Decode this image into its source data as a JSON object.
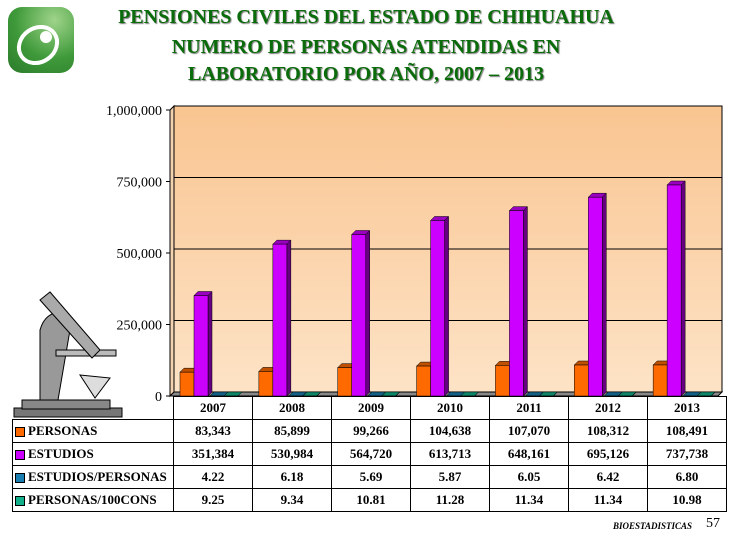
{
  "title": {
    "line1": "PENSIONES  CIVILES  DEL  ESTADO  DE  CHIHUAHUA",
    "line2": "NUMERO DE PERSONAS ATENDIDAS EN",
    "line3": "LABORATORIO POR AÑO,  2007  –  2013"
  },
  "footer": {
    "label": "BIOESTADISTICAS",
    "page": "57"
  },
  "chart_data": {
    "type": "bar",
    "categories": [
      "2007",
      "2008",
      "2009",
      "2010",
      "2011",
      "2012",
      "2013"
    ],
    "ylim": [
      0,
      1000000
    ],
    "yticks": [
      "0",
      "250,000",
      "500,000",
      "750,000",
      "1,000,000"
    ],
    "ytick_values": [
      0,
      250000,
      500000,
      750000,
      1000000
    ],
    "series": [
      {
        "name": "PERSONAS",
        "color": "#ff6a00",
        "values": [
          83343,
          85899,
          99266,
          104638,
          107070,
          108312,
          108491
        ],
        "labels": [
          "83,343",
          "85,899",
          "99,266",
          "104,638",
          "107,070",
          "108,312",
          "108,491"
        ]
      },
      {
        "name": "ESTUDIOS",
        "color": "#cc00ff",
        "values": [
          351384,
          530984,
          564720,
          613713,
          648161,
          695126,
          737738
        ],
        "labels": [
          "351,384",
          "530,984",
          "564,720",
          "613,713",
          "648,161",
          "695,126",
          "737,738"
        ]
      },
      {
        "name": "ESTUDIOS/PERSONAS",
        "color": "#1a7fb0",
        "values": [
          4.22,
          6.18,
          5.69,
          5.87,
          6.05,
          6.42,
          6.8
        ],
        "labels": [
          "4.22",
          "6.18",
          "5.69",
          "5.87",
          "6.05",
          "6.42",
          "6.80"
        ]
      },
      {
        "name": "PERSONAS/100CONS",
        "color": "#12b08a",
        "values": [
          9.25,
          9.34,
          10.81,
          11.28,
          11.34,
          11.34,
          10.98
        ],
        "labels": [
          "9.25",
          "9.34",
          "10.81",
          "11.28",
          "11.34",
          "11.34",
          "10.98"
        ]
      }
    ]
  }
}
